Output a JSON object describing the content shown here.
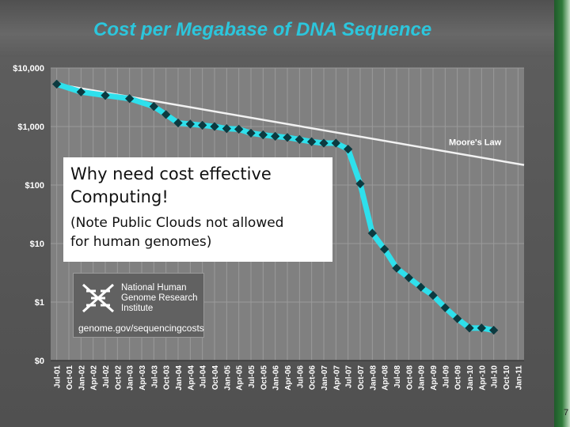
{
  "slide": {
    "title": "Cost per Megabase of DNA Sequence",
    "callout_heading_line1": "Why need cost effective",
    "callout_heading_line2": "Computing!",
    "callout_note_line1": "(Note Public Clouds not allowed",
    "callout_note_line2": "for human genomes)",
    "logo_line1": "National Human",
    "logo_line2": "Genome Research",
    "logo_line3": "Institute",
    "logo_url": "genome.gov/sequencingcosts",
    "page_mark": "7"
  },
  "chart_data": {
    "type": "line",
    "y_scale": "log",
    "ylim": [
      0.1,
      10000
    ],
    "y_ticks": [
      {
        "value": 10000,
        "label": "$10,000"
      },
      {
        "value": 1000,
        "label": "$1,000"
      },
      {
        "value": 100,
        "label": "$100"
      },
      {
        "value": 10,
        "label": "$10"
      },
      {
        "value": 1,
        "label": "$1"
      },
      {
        "value": 0.1,
        "label": "$0"
      }
    ],
    "categories": [
      "Jul-01",
      "Oct-01",
      "Jan-02",
      "Apr-02",
      "Jul-02",
      "Oct-02",
      "Jan-03",
      "Apr-03",
      "Jul-03",
      "Oct-03",
      "Jan-04",
      "Apr-04",
      "Jul-04",
      "Oct-04",
      "Jan-05",
      "Apr-05",
      "Jul-05",
      "Oct-05",
      "Jan-06",
      "Apr-06",
      "Jul-06",
      "Oct-06",
      "Jan-07",
      "Apr-07",
      "Jul-07",
      "Oct-07",
      "Jan-08",
      "Apr-08",
      "Jul-08",
      "Oct-08",
      "Jan-09",
      "Apr-09",
      "Jul-09",
      "Oct-09",
      "Jan-10",
      "Apr-10",
      "Jul-10",
      "Oct-10",
      "Jan-11"
    ],
    "series": [
      {
        "role": "cost",
        "color": "#2ee0ec",
        "marker_color": "#0c3a40",
        "points": [
          [
            "Jul-01",
            5300
          ],
          [
            "Jan-02",
            3900
          ],
          [
            "Jul-02",
            3400
          ],
          [
            "Jan-03",
            3000
          ],
          [
            "Jul-03",
            2200
          ],
          [
            "Oct-03",
            1600
          ],
          [
            "Jan-04",
            1150
          ],
          [
            "Apr-04",
            1100
          ],
          [
            "Jul-04",
            1050
          ],
          [
            "Oct-04",
            1000
          ],
          [
            "Jan-05",
            920
          ],
          [
            "Apr-05",
            900
          ],
          [
            "Jul-05",
            770
          ],
          [
            "Oct-05",
            720
          ],
          [
            "Jan-06",
            680
          ],
          [
            "Apr-06",
            650
          ],
          [
            "Jul-06",
            600
          ],
          [
            "Oct-06",
            550
          ],
          [
            "Jan-07",
            520
          ],
          [
            "Apr-07",
            520
          ],
          [
            "Jul-07",
            410
          ],
          [
            "Oct-07",
            105
          ],
          [
            "Jan-08",
            15
          ],
          [
            "Apr-08",
            8
          ],
          [
            "Jul-08",
            3.8
          ],
          [
            "Oct-08",
            2.6
          ],
          [
            "Jan-09",
            1.8
          ],
          [
            "Apr-09",
            1.3
          ],
          [
            "Jul-09",
            0.8
          ],
          [
            "Oct-09",
            0.52
          ],
          [
            "Jan-10",
            0.36
          ],
          [
            "Apr-10",
            0.36
          ],
          [
            "Jul-10",
            0.33
          ]
        ]
      },
      {
        "name": "Moore's Law",
        "color": "#f2f2f2",
        "points": [
          [
            "Jul-01",
            5300
          ],
          [
            "Jan-11",
            220
          ]
        ]
      }
    ],
    "colors": {
      "plot_bg": "#808080",
      "grid": "#9a9a9a",
      "tick_text": "#ffffff",
      "title": "#2cc6dc"
    }
  }
}
